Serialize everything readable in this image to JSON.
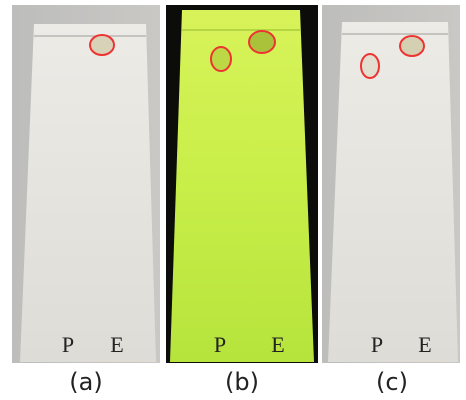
{
  "panels": [
    {
      "caption": "(a)",
      "lanes": [
        "P",
        "E"
      ]
    },
    {
      "caption": "(b)",
      "lanes": [
        "P",
        "E"
      ]
    },
    {
      "caption": "(c)",
      "lanes": [
        "P",
        "E"
      ]
    }
  ]
}
